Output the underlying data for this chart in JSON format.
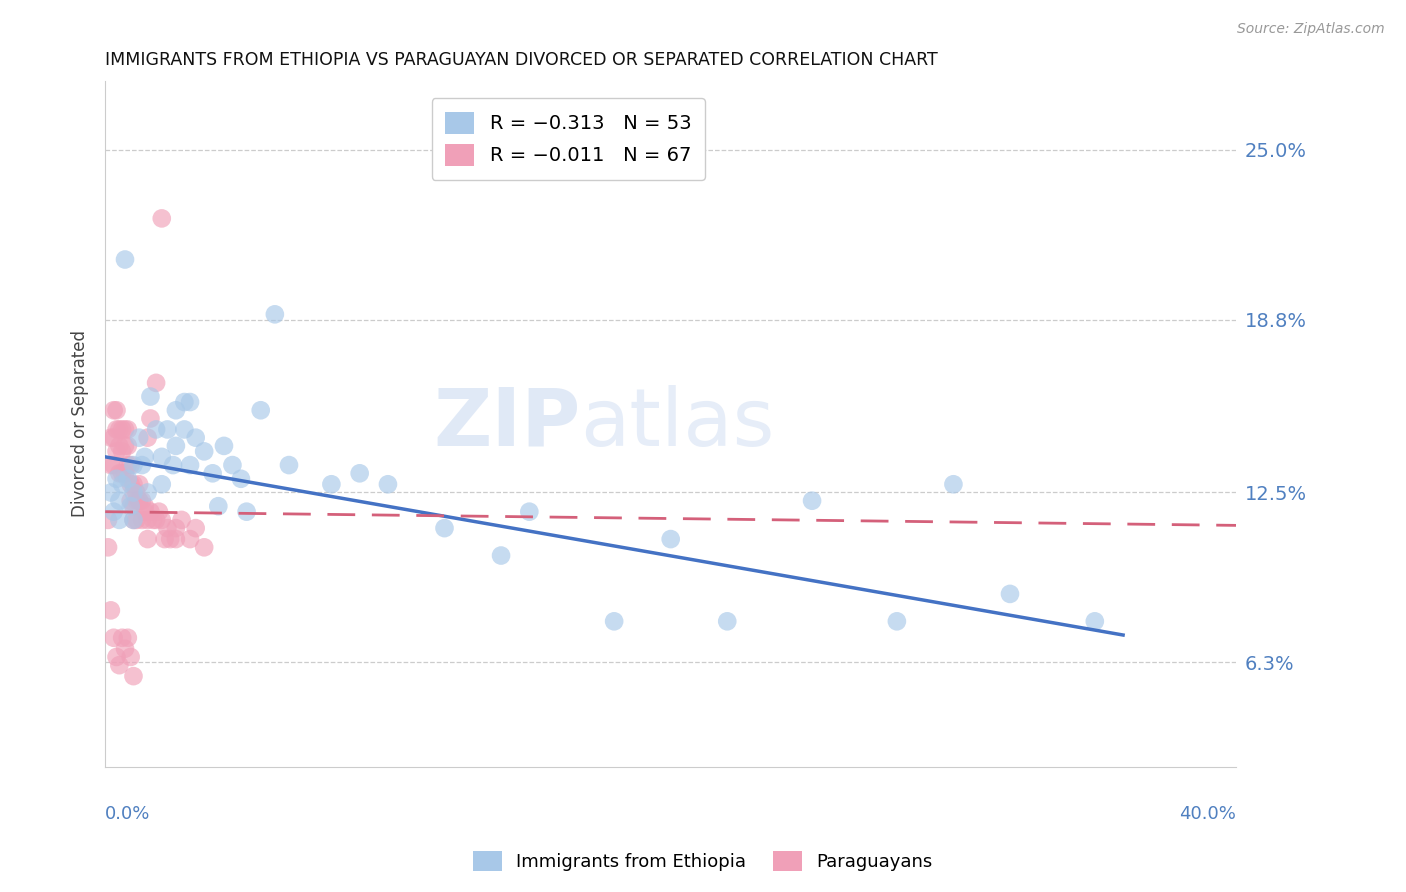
{
  "title": "IMMIGRANTS FROM ETHIOPIA VS PARAGUAYAN DIVORCED OR SEPARATED CORRELATION CHART",
  "source": "Source: ZipAtlas.com",
  "ylabel_label": "Divorced or Separated",
  "yticks": [
    0.063,
    0.125,
    0.188,
    0.25
  ],
  "ytick_labels": [
    "6.3%",
    "12.5%",
    "18.8%",
    "25.0%"
  ],
  "xlim": [
    0.0,
    0.4
  ],
  "ylim": [
    0.025,
    0.275
  ],
  "legend1_r": "R = −0.313",
  "legend1_n": "N = 53",
  "legend2_r": "R = −0.011",
  "legend2_n": "N = 67",
  "color_blue": "#a8c8e8",
  "color_pink": "#f0a0b8",
  "color_line_blue": "#4472c4",
  "color_line_pink": "#d4607a",
  "color_axis_labels": "#5080c0",
  "watermark_zip": "ZIP",
  "watermark_atlas": "atlas",
  "ethiopia_x": [
    0.002,
    0.003,
    0.004,
    0.005,
    0.005,
    0.006,
    0.007,
    0.008,
    0.009,
    0.01,
    0.01,
    0.01,
    0.012,
    0.013,
    0.014,
    0.015,
    0.016,
    0.018,
    0.02,
    0.02,
    0.022,
    0.024,
    0.025,
    0.025,
    0.028,
    0.028,
    0.03,
    0.03,
    0.032,
    0.035,
    0.038,
    0.04,
    0.042,
    0.045,
    0.048,
    0.05,
    0.055,
    0.06,
    0.065,
    0.08,
    0.09,
    0.1,
    0.12,
    0.14,
    0.15,
    0.18,
    0.2,
    0.22,
    0.25,
    0.28,
    0.3,
    0.32,
    0.35
  ],
  "ethiopia_y": [
    0.125,
    0.118,
    0.13,
    0.122,
    0.115,
    0.128,
    0.21,
    0.13,
    0.12,
    0.135,
    0.125,
    0.115,
    0.145,
    0.135,
    0.138,
    0.125,
    0.16,
    0.148,
    0.138,
    0.128,
    0.148,
    0.135,
    0.155,
    0.142,
    0.158,
    0.148,
    0.158,
    0.135,
    0.145,
    0.14,
    0.132,
    0.12,
    0.142,
    0.135,
    0.13,
    0.118,
    0.155,
    0.19,
    0.135,
    0.128,
    0.132,
    0.128,
    0.112,
    0.102,
    0.118,
    0.078,
    0.108,
    0.078,
    0.122,
    0.078,
    0.128,
    0.088,
    0.078
  ],
  "paraguayan_x": [
    0.001,
    0.001,
    0.002,
    0.002,
    0.003,
    0.003,
    0.003,
    0.004,
    0.004,
    0.004,
    0.005,
    0.005,
    0.005,
    0.006,
    0.006,
    0.006,
    0.007,
    0.007,
    0.007,
    0.008,
    0.008,
    0.008,
    0.009,
    0.009,
    0.009,
    0.01,
    0.01,
    0.01,
    0.011,
    0.011,
    0.012,
    0.012,
    0.013,
    0.013,
    0.014,
    0.015,
    0.015,
    0.016,
    0.017,
    0.018,
    0.019,
    0.02,
    0.021,
    0.022,
    0.023,
    0.025,
    0.025,
    0.027,
    0.03,
    0.032,
    0.035,
    0.002,
    0.003,
    0.004,
    0.005,
    0.006,
    0.007,
    0.008,
    0.009,
    0.01,
    0.011,
    0.012,
    0.014,
    0.015,
    0.016,
    0.018,
    0.02
  ],
  "paraguayan_y": [
    0.115,
    0.105,
    0.145,
    0.135,
    0.155,
    0.145,
    0.135,
    0.155,
    0.148,
    0.14,
    0.148,
    0.142,
    0.132,
    0.148,
    0.14,
    0.132,
    0.148,
    0.142,
    0.132,
    0.148,
    0.142,
    0.135,
    0.135,
    0.128,
    0.122,
    0.128,
    0.12,
    0.115,
    0.122,
    0.115,
    0.128,
    0.122,
    0.122,
    0.115,
    0.12,
    0.115,
    0.108,
    0.118,
    0.115,
    0.115,
    0.118,
    0.115,
    0.108,
    0.112,
    0.108,
    0.112,
    0.108,
    0.115,
    0.108,
    0.112,
    0.105,
    0.082,
    0.072,
    0.065,
    0.062,
    0.072,
    0.068,
    0.072,
    0.065,
    0.058,
    0.125,
    0.122,
    0.118,
    0.145,
    0.152,
    0.165,
    0.225
  ],
  "blue_line_x": [
    0.0,
    0.36
  ],
  "blue_line_y": [
    0.138,
    0.073
  ],
  "pink_line_x": [
    0.0,
    0.4
  ],
  "pink_line_y": [
    0.118,
    0.113
  ]
}
